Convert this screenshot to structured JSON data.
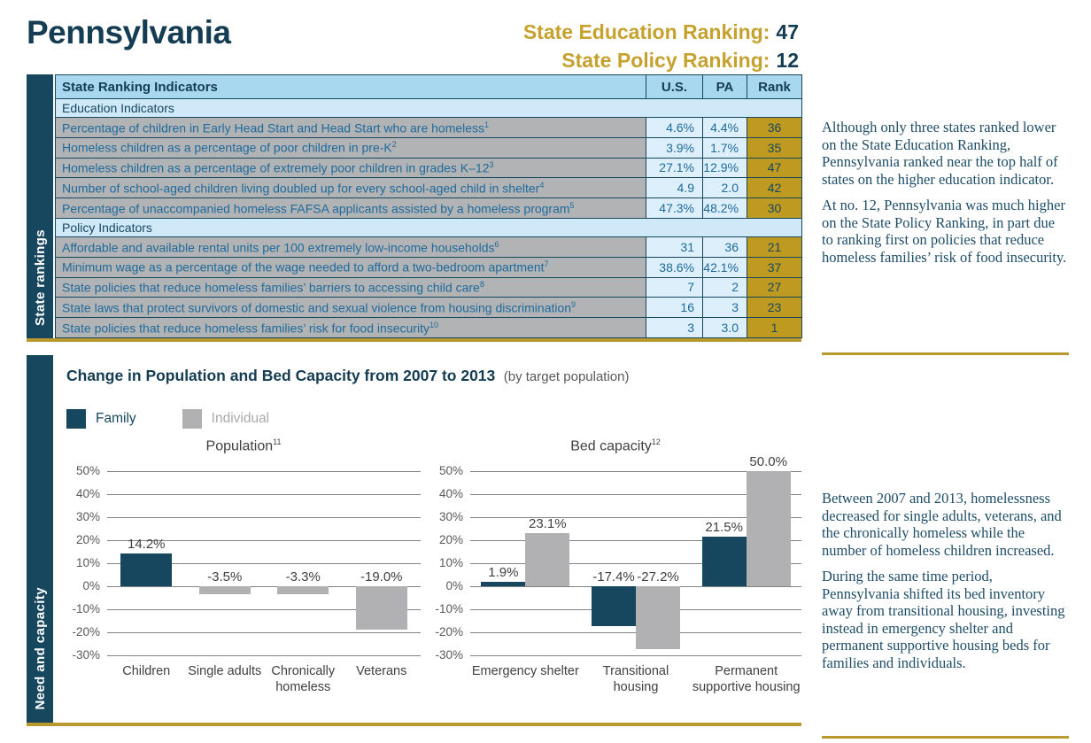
{
  "colors": {
    "navy": "#17475E",
    "navy_dark": "#143C52",
    "gold_headline": "#C6A12D",
    "gold_cell": "#BE9B20",
    "gold_rule": "#B9992E",
    "table_header_bg": "#A8D8F0",
    "table_subheader_bg": "#CFE9F8",
    "table_value_bg": "#DCEFFA",
    "table_label_bg": "#B2B3B5",
    "table_text_blue": "#1E6A9C",
    "bar_family": "#17475E",
    "bar_individual": "#B1B1B3",
    "grid": "#808285",
    "chart_text": "#414042",
    "note_text": "#1E4D67"
  },
  "header": {
    "title": "Pennsylvania",
    "education_ranking_label": "State Education Ranking:",
    "education_ranking_value": "47",
    "policy_ranking_label": "State Policy Ranking:",
    "policy_ranking_value": "12"
  },
  "rankings_table": {
    "section_label": "State rankings",
    "columns": [
      "State Ranking Indicators",
      "U.S.",
      "PA",
      "Rank"
    ],
    "groups": [
      {
        "group_label": "Education Indicators",
        "rows": [
          {
            "label": "Percentage of children in Early Head Start and Head Start who are homeless",
            "footnote": "1",
            "us": "4.6%",
            "state": "4.4%",
            "rank": "36"
          },
          {
            "label": "Homeless children as a percentage of poor children in pre-K",
            "footnote": "2",
            "us": "3.9%",
            "state": "1.7%",
            "rank": "35"
          },
          {
            "label": "Homeless children as a percentage of extremely poor children in grades K–12",
            "footnote": "3",
            "us": "27.1%",
            "state": "12.9%",
            "rank": "47"
          },
          {
            "label": "Number of school-aged children living doubled up for every school-aged child in shelter",
            "footnote": "4",
            "us": "4.9",
            "state": "2.0",
            "rank": "42"
          },
          {
            "label": "Percentage of unaccompanied homeless FAFSA applicants assisted by a homeless program",
            "footnote": "5",
            "us": "47.3%",
            "state": "48.2%",
            "rank": "30"
          }
        ]
      },
      {
        "group_label": "Policy Indicators",
        "rows": [
          {
            "label": "Affordable and available rental units per 100 extremely low-income households",
            "footnote": "6",
            "us": "31",
            "state": "36",
            "rank": "21"
          },
          {
            "label": "Minimum wage as a percentage of the wage needed to afford a two-bedroom apartment",
            "footnote": "7",
            "us": "38.6%",
            "state": "42.1%",
            "rank": "37"
          },
          {
            "label": "State policies that reduce homeless families’ barriers to accessing child care",
            "footnote": "8",
            "us": "7",
            "state": "2",
            "rank": "27"
          },
          {
            "label": "State laws that protect survivors of domestic and sexual violence from housing discrimination",
            "footnote": "9",
            "us": "16",
            "state": "3",
            "rank": "23"
          },
          {
            "label": "State policies that reduce homeless families’ risk for food insecurity",
            "footnote": "10",
            "us": "3",
            "state": "3.0",
            "rank": "1"
          }
        ]
      }
    ]
  },
  "notes": {
    "rankings": [
      "Although only three states ranked lower on the State Education Ranking, Pennsylvania ranked near the top half of states on the higher education indicator.",
      "At no. 12, Pennsylvania was much higher on the State Policy Ranking, in part due to ranking first on policies that reduce homeless families’ risk of food insecurity."
    ],
    "need_capacity": [
      "Between 2007 and 2013, homelessness decreased for single adults, veterans, and the chronically homeless while the number of homeless children increased.",
      "During the same time period, Pennsylvania shifted its bed inventory away from transitional housing, investing instead in emergency shelter and permanent supportive housing beds for families and individuals."
    ]
  },
  "charts": {
    "section_label": "Need and capacity",
    "title": "Change in Population and Bed Capacity from 2007 to 2013",
    "subtitle": "(by target population)",
    "legend": [
      {
        "name": "Family",
        "color": "#17475E"
      },
      {
        "name": "Individual",
        "color": "#B1B1B3"
      }
    ]
  },
  "chart_data": [
    {
      "type": "bar",
      "title": "Population",
      "title_footnote": "11",
      "ylim": [
        -30,
        50
      ],
      "yticks": [
        50,
        40,
        30,
        20,
        10,
        0,
        -10,
        -20,
        -30
      ],
      "ytick_suffix": "%",
      "grid": true,
      "series_colors": {
        "Family": "#17475E",
        "Individual": "#B1B1B3"
      },
      "groups": [
        {
          "category": "Children",
          "bars": [
            {
              "series": "Family",
              "value": 14.2,
              "label": "14.2%"
            }
          ]
        },
        {
          "category": "Single adults",
          "bars": [
            {
              "series": "Individual",
              "value": -3.5,
              "label": "-3.5%"
            }
          ]
        },
        {
          "category": "Chronically homeless",
          "bars": [
            {
              "series": "Individual",
              "value": -3.3,
              "label": "-3.3%"
            }
          ]
        },
        {
          "category": "Veterans",
          "bars": [
            {
              "series": "Individual",
              "value": -19.0,
              "label": "-19.0%"
            }
          ]
        }
      ]
    },
    {
      "type": "bar",
      "title": "Bed capacity",
      "title_footnote": "12",
      "ylim": [
        -30,
        50
      ],
      "yticks": [
        50,
        40,
        30,
        20,
        10,
        0,
        -10,
        -20,
        -30
      ],
      "ytick_suffix": "%",
      "grid": true,
      "series_colors": {
        "Family": "#17475E",
        "Individual": "#B1B1B3"
      },
      "groups": [
        {
          "category": "Emergency shelter",
          "bars": [
            {
              "series": "Family",
              "value": 1.9,
              "label": "1.9%"
            },
            {
              "series": "Individual",
              "value": 23.1,
              "label": "23.1%"
            }
          ]
        },
        {
          "category": "Transitional housing",
          "bars": [
            {
              "series": "Family",
              "value": -17.4,
              "label": "-17.4%"
            },
            {
              "series": "Individual",
              "value": -27.2,
              "label": "-27.2%"
            }
          ]
        },
        {
          "category": "Permanent supportive housing",
          "bars": [
            {
              "series": "Family",
              "value": 21.5,
              "label": "21.5%"
            },
            {
              "series": "Individual",
              "value": 50.0,
              "label": "50.0%"
            }
          ]
        }
      ]
    }
  ]
}
